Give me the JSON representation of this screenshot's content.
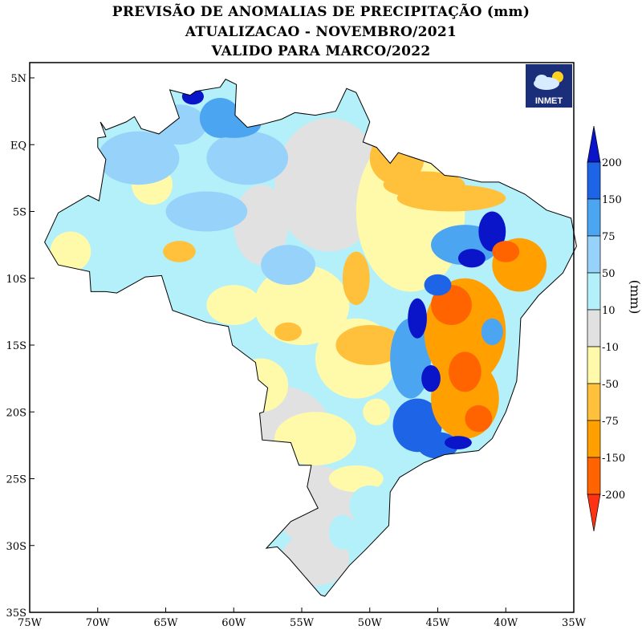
{
  "title": {
    "line1": "PREVISÃO DE ANOMALIAS DE PRECIPITAÇÃO (mm)",
    "line2": "ATUALIZACAO - NOVEMBRO/2021",
    "line3": "VALIDO PARA MARCO/2022"
  },
  "logo": {
    "text": "INMET",
    "icon": "cloud-sun-icon"
  },
  "map": {
    "region": "Brasil",
    "x_ticks": [
      "75W",
      "70W",
      "65W",
      "60W",
      "55W",
      "50W",
      "45W",
      "40W",
      "35W"
    ],
    "y_ticks": [
      "5N",
      "EQ",
      "5S",
      "10S",
      "15S",
      "20S",
      "25S",
      "30S",
      "35S"
    ],
    "lon_range": [
      -75,
      -35
    ],
    "lat_range": [
      -35,
      6
    ]
  },
  "legend": {
    "unit_label": "(mm)",
    "levels": [
      "200",
      "150",
      "75",
      "50",
      "10",
      "-10",
      "-50",
      "-75",
      "-150",
      "-200"
    ],
    "colors": [
      "#0a14c8",
      "#1e64e6",
      "#4ba5f0",
      "#96d2fa",
      "#b4f0fa",
      "#e1e1e1",
      "#fffaaa",
      "#ffc03c",
      "#ffa000",
      "#ff6400",
      "#ff3214"
    ]
  }
}
